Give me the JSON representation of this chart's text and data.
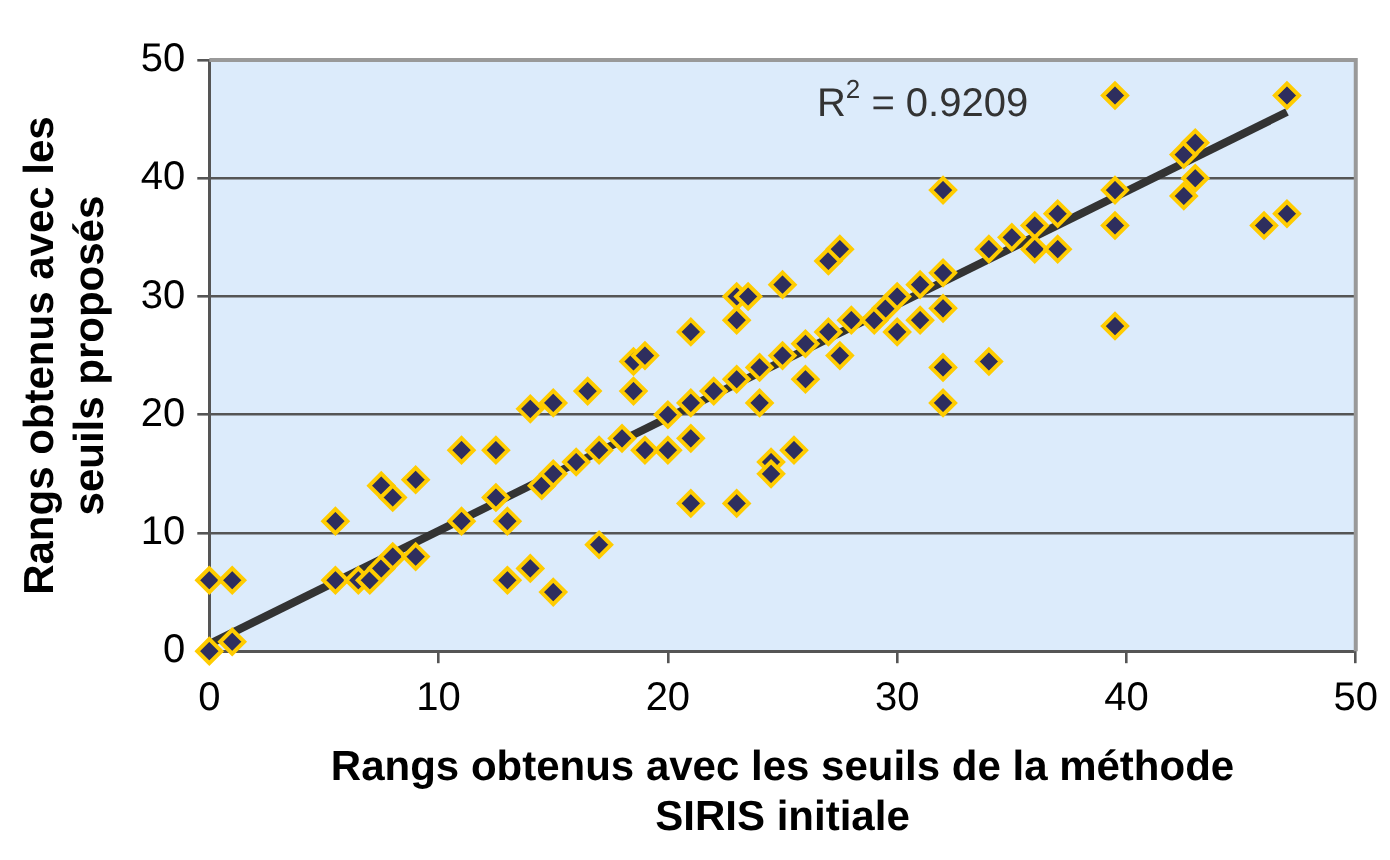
{
  "chart_data": {
    "type": "scatter",
    "xlabel": "Rangs obtenus avec les seuils de la méthode SIRIS initiale",
    "ylabel": "Rangs obtenus avec les seuils proposés",
    "xlim": [
      0,
      50
    ],
    "xticks": [
      0,
      10,
      20,
      30,
      40,
      50
    ],
    "ylim": [
      0,
      50
    ],
    "yticks": [
      0,
      10,
      20,
      30,
      40,
      50
    ],
    "grid": "y",
    "legend": false,
    "marker": "diamond",
    "annotations": [
      "R$^{2}$ = 0.9209"
    ],
    "series": [
      {
        "color": "#2e2e5e",
        "x": [
          0,
          1,
          0,
          1,
          5.5,
          5.5,
          6.5,
          7,
          7.5,
          8,
          7.5,
          8,
          9,
          9,
          11,
          11,
          12.5,
          12.5,
          13,
          13,
          14,
          14,
          15,
          15,
          14.5,
          15,
          16,
          16.5,
          17,
          17,
          18,
          18.5,
          18.5,
          19,
          19,
          20,
          20,
          21,
          21,
          21,
          21,
          22,
          23,
          23,
          23,
          23.5,
          23,
          24,
          24,
          24.5,
          24.5,
          25,
          25,
          25.5,
          26,
          26,
          27,
          27,
          27.5,
          27.5,
          28,
          29,
          29.5,
          30,
          30,
          31,
          31,
          32,
          32,
          32,
          32,
          32,
          34,
          34,
          35,
          36,
          36,
          37,
          37,
          39.5,
          39.5,
          39.5,
          39.5,
          42.5,
          43,
          42.5,
          43,
          46,
          47,
          47
        ],
        "values": [
          0,
          0.8,
          6,
          6,
          11,
          6,
          6,
          6,
          7,
          8,
          14,
          13,
          14.5,
          8,
          17,
          11,
          13,
          17,
          11,
          6,
          7,
          20.5,
          21,
          5,
          14,
          15,
          16,
          22,
          9,
          17,
          18,
          22,
          24.5,
          25,
          17,
          20,
          17,
          27,
          12.5,
          21,
          18,
          22,
          23,
          12.5,
          30,
          30,
          28,
          21,
          24,
          16,
          15,
          25,
          31,
          17,
          26,
          23,
          27,
          33,
          34,
          25,
          28,
          28,
          29,
          30,
          27,
          31,
          28,
          32,
          39,
          21,
          24,
          29,
          34,
          24.5,
          35,
          36,
          34,
          37,
          34,
          47,
          39,
          36,
          27.5,
          42,
          43,
          38.5,
          40,
          36,
          47,
          37
        ]
      },
      {
        "type": "line",
        "color": "#333333",
        "marker": "none",
        "x": [
          0,
          47
        ],
        "values": [
          0.6,
          45.6
        ]
      }
    ]
  }
}
